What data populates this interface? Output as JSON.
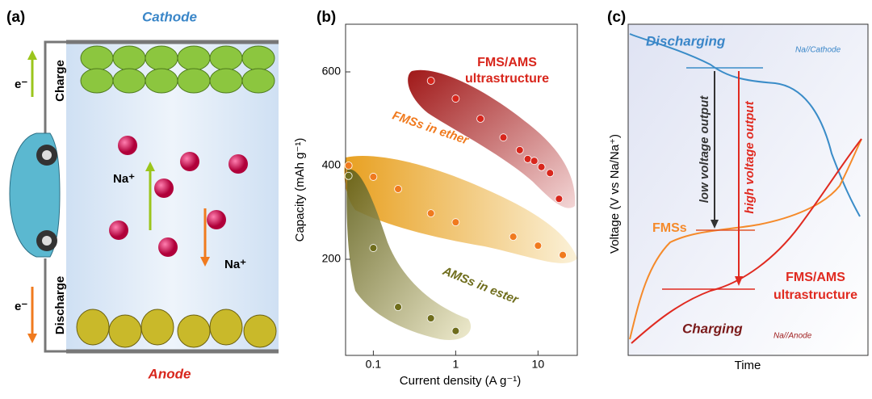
{
  "chart_data": {
    "type": "scatter",
    "label": "(b)",
    "x_label": "Current density (A g⁻¹)",
    "y_label": "Capacity (mAh g⁻¹)",
    "xscale": "log",
    "xlim": [
      0.046,
      30
    ],
    "ylim": [
      0,
      700
    ],
    "xticks": [
      0.1,
      1,
      10
    ],
    "yticks": [
      200,
      400,
      600
    ],
    "series": [
      {
        "name": "FMS/AMS ultrastructure",
        "color": "#d8261c",
        "x": [
          0.5,
          1,
          2,
          3.8,
          6,
          7.5,
          9,
          11,
          14,
          18
        ],
        "values": [
          581,
          543,
          500,
          460,
          433,
          414,
          410,
          397,
          384,
          329
        ]
      },
      {
        "name": "FMSs in ether",
        "color": "#f07a1e",
        "x": [
          0.05,
          0.1,
          0.2,
          0.5,
          1,
          5,
          10,
          20
        ],
        "values": [
          400,
          376,
          350,
          298,
          279,
          248,
          229,
          209
        ]
      },
      {
        "name": "AMSs in ester",
        "color": "#6f6d1c",
        "x": [
          0.05,
          0.1,
          0.2,
          0.5,
          1
        ],
        "values": [
          378,
          224,
          98,
          74,
          47
        ]
      }
    ]
  },
  "panel_a": {
    "label": "(a)",
    "cathode": "Cathode",
    "anode": "Anode",
    "charge": "Charge",
    "discharge": "Discharge",
    "electron_top": "e⁻",
    "electron_bottom": "e⁻",
    "ion_up": "Na⁺",
    "ion_down": "Na⁺"
  },
  "panel_c": {
    "label": "(c)",
    "discharging": "Discharging",
    "discharging_sub": "Na//Cathode",
    "charging": "Charging",
    "charging_sub": "Na//Anode",
    "low": "low voltage output",
    "high": "high voltage output",
    "fmss": "FMSs",
    "ultra": "FMS/AMS ultrastructure",
    "y_label": "Voltage (V vs Na/Na⁺)",
    "x_label": "Time"
  }
}
